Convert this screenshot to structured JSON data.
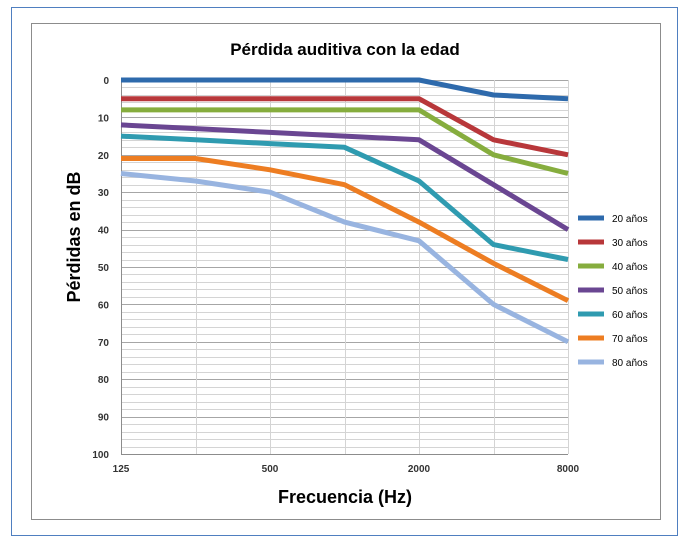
{
  "chart_data": {
    "type": "line",
    "title": "Pérdida auditiva con la edad",
    "xlabel": "Frecuencia (Hz)",
    "ylabel": "Pérdidas  en dB",
    "x_scale": "log2",
    "x": [
      125,
      250,
      500,
      1000,
      2000,
      4000,
      8000
    ],
    "xticks": [
      "125",
      "500",
      "2000",
      "8000"
    ],
    "xlim": [
      125,
      8000
    ],
    "ylim": [
      0,
      100
    ],
    "y_inverted": true,
    "yticks": [
      "0",
      "10",
      "20",
      "30",
      "40",
      "50",
      "60",
      "70",
      "80",
      "90",
      "100"
    ],
    "grid": true,
    "legend_position": "right",
    "series": [
      {
        "name": "20 años",
        "color": "#2e6aac",
        "values": [
          0,
          0,
          0,
          0,
          0,
          4,
          5
        ]
      },
      {
        "name": "30 años",
        "color": "#b8373a",
        "values": [
          5,
          5,
          5,
          5,
          5,
          16,
          20
        ]
      },
      {
        "name": "40 años",
        "color": "#86ad3e",
        "values": [
          8,
          8,
          8,
          8,
          8,
          20,
          25
        ]
      },
      {
        "name": "50 años",
        "color": "#6a4692",
        "values": [
          12,
          13,
          14,
          15,
          16,
          28,
          40
        ]
      },
      {
        "name": "60 años",
        "color": "#2f9bb0",
        "values": [
          15,
          16,
          17,
          18,
          27,
          44,
          48
        ]
      },
      {
        "name": "70 años",
        "color": "#ed7d22",
        "values": [
          21,
          21,
          24,
          28,
          38,
          49,
          59
        ]
      },
      {
        "name": "80 años",
        "color": "#98b4e0",
        "values": [
          25,
          27,
          30,
          38,
          43,
          60,
          70
        ]
      }
    ]
  }
}
